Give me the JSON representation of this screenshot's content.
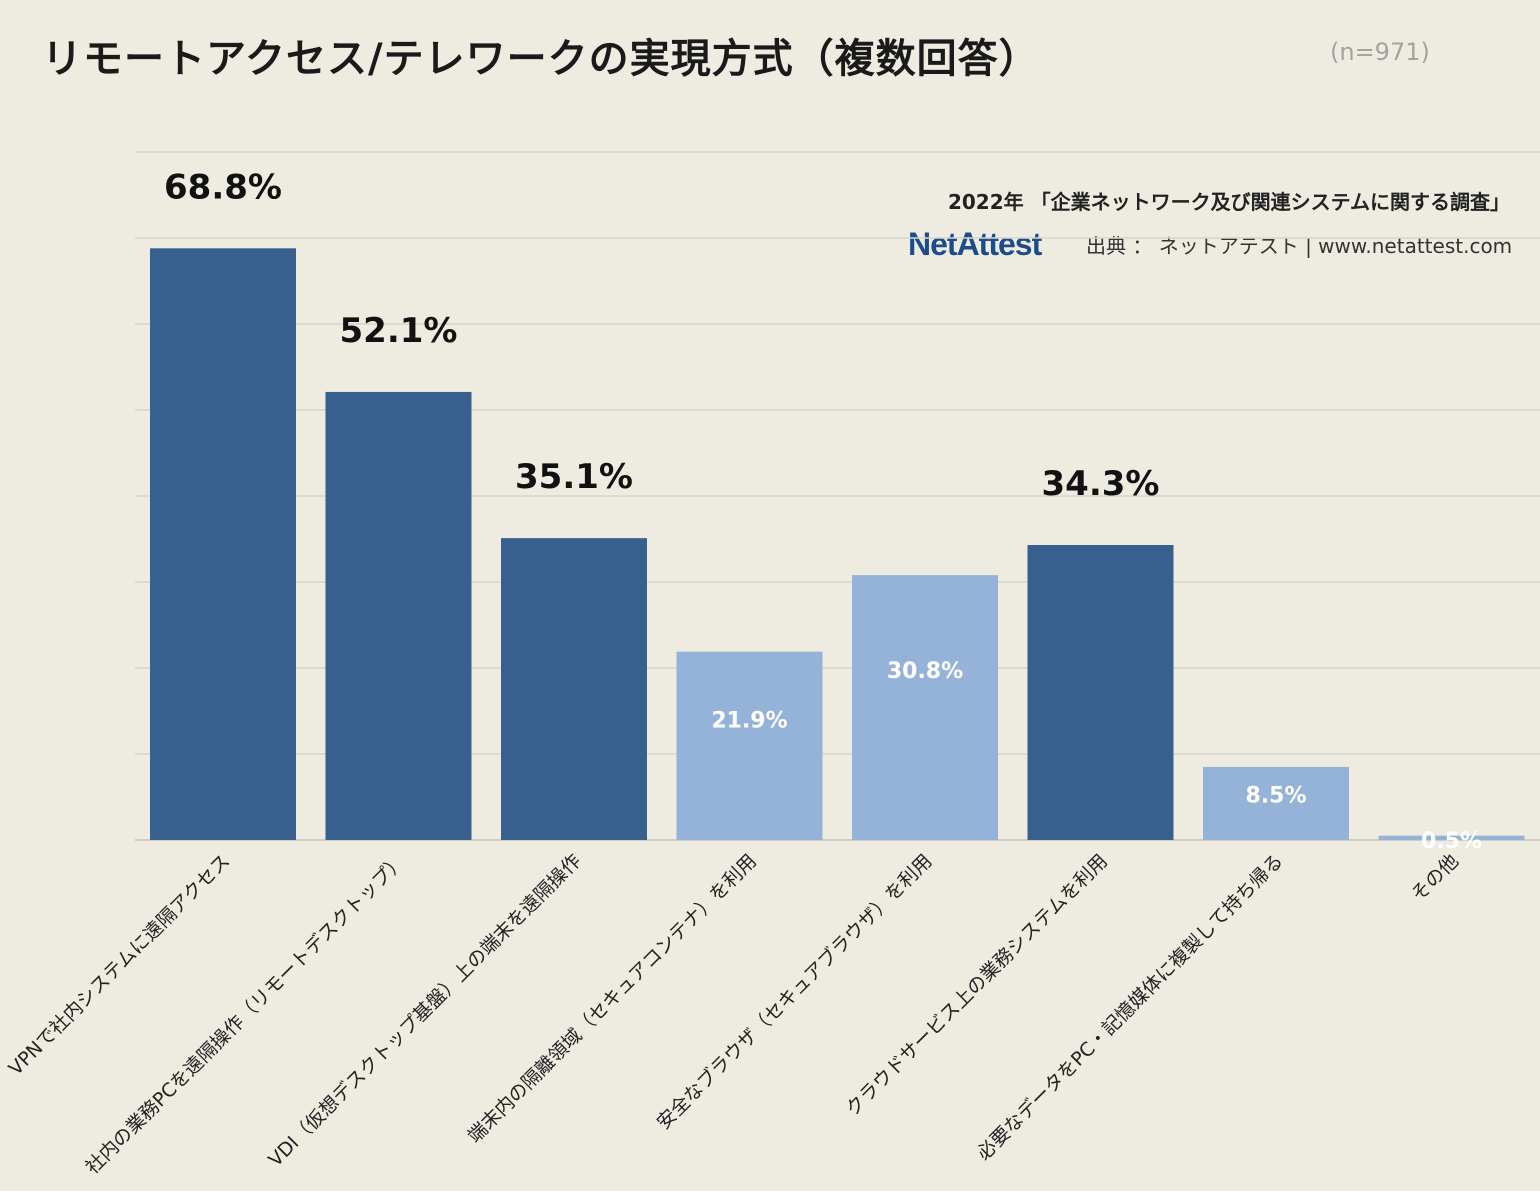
{
  "header": {
    "title": "リモートアクセス/テレワークの実現方式（複数回答）",
    "sample_size": "(n=971)",
    "survey_name": "2022年 「企業ネットワーク及び関連システムに関する調査」",
    "brand": "NetAttest",
    "source": "出典 ： ネットアテスト | www.netattest.com"
  },
  "colors": {
    "dark_bar": "#37608f",
    "light_bar": "#95b3d9",
    "background": "#eeebe1",
    "grid": "#d8d5cc"
  },
  "chart_data": {
    "type": "bar",
    "title": "リモートアクセス/テレワークの実現方式（複数回答）",
    "xlabel": "",
    "ylabel": "",
    "ylim": [
      0,
      80
    ],
    "grid": true,
    "categories": [
      "VPNで社内システムに遠隔アクセス",
      "社内の業務PCを遠隔操作（リモートデスクトップ）",
      "VDI（仮想デスクトップ基盤）上の端末を遠隔操作",
      "端末内の隔離領域（セキュアコンテナ）を利用",
      "安全なブラウザ（セキュアブラウザ）を利用",
      "クラウドサービス上の業務システムを利用",
      "必要なデータをPC・記憶媒体に複製して持ち帰る",
      "その他"
    ],
    "values": [
      68.8,
      52.1,
      35.1,
      21.9,
      30.8,
      34.3,
      8.5,
      0.5
    ],
    "labels": [
      "68.8%",
      "52.1%",
      "35.1%",
      "21.9%",
      "30.8%",
      "34.3%",
      "8.5%",
      "0.5%"
    ],
    "highlight": [
      true,
      true,
      true,
      false,
      false,
      true,
      false,
      false
    ]
  }
}
